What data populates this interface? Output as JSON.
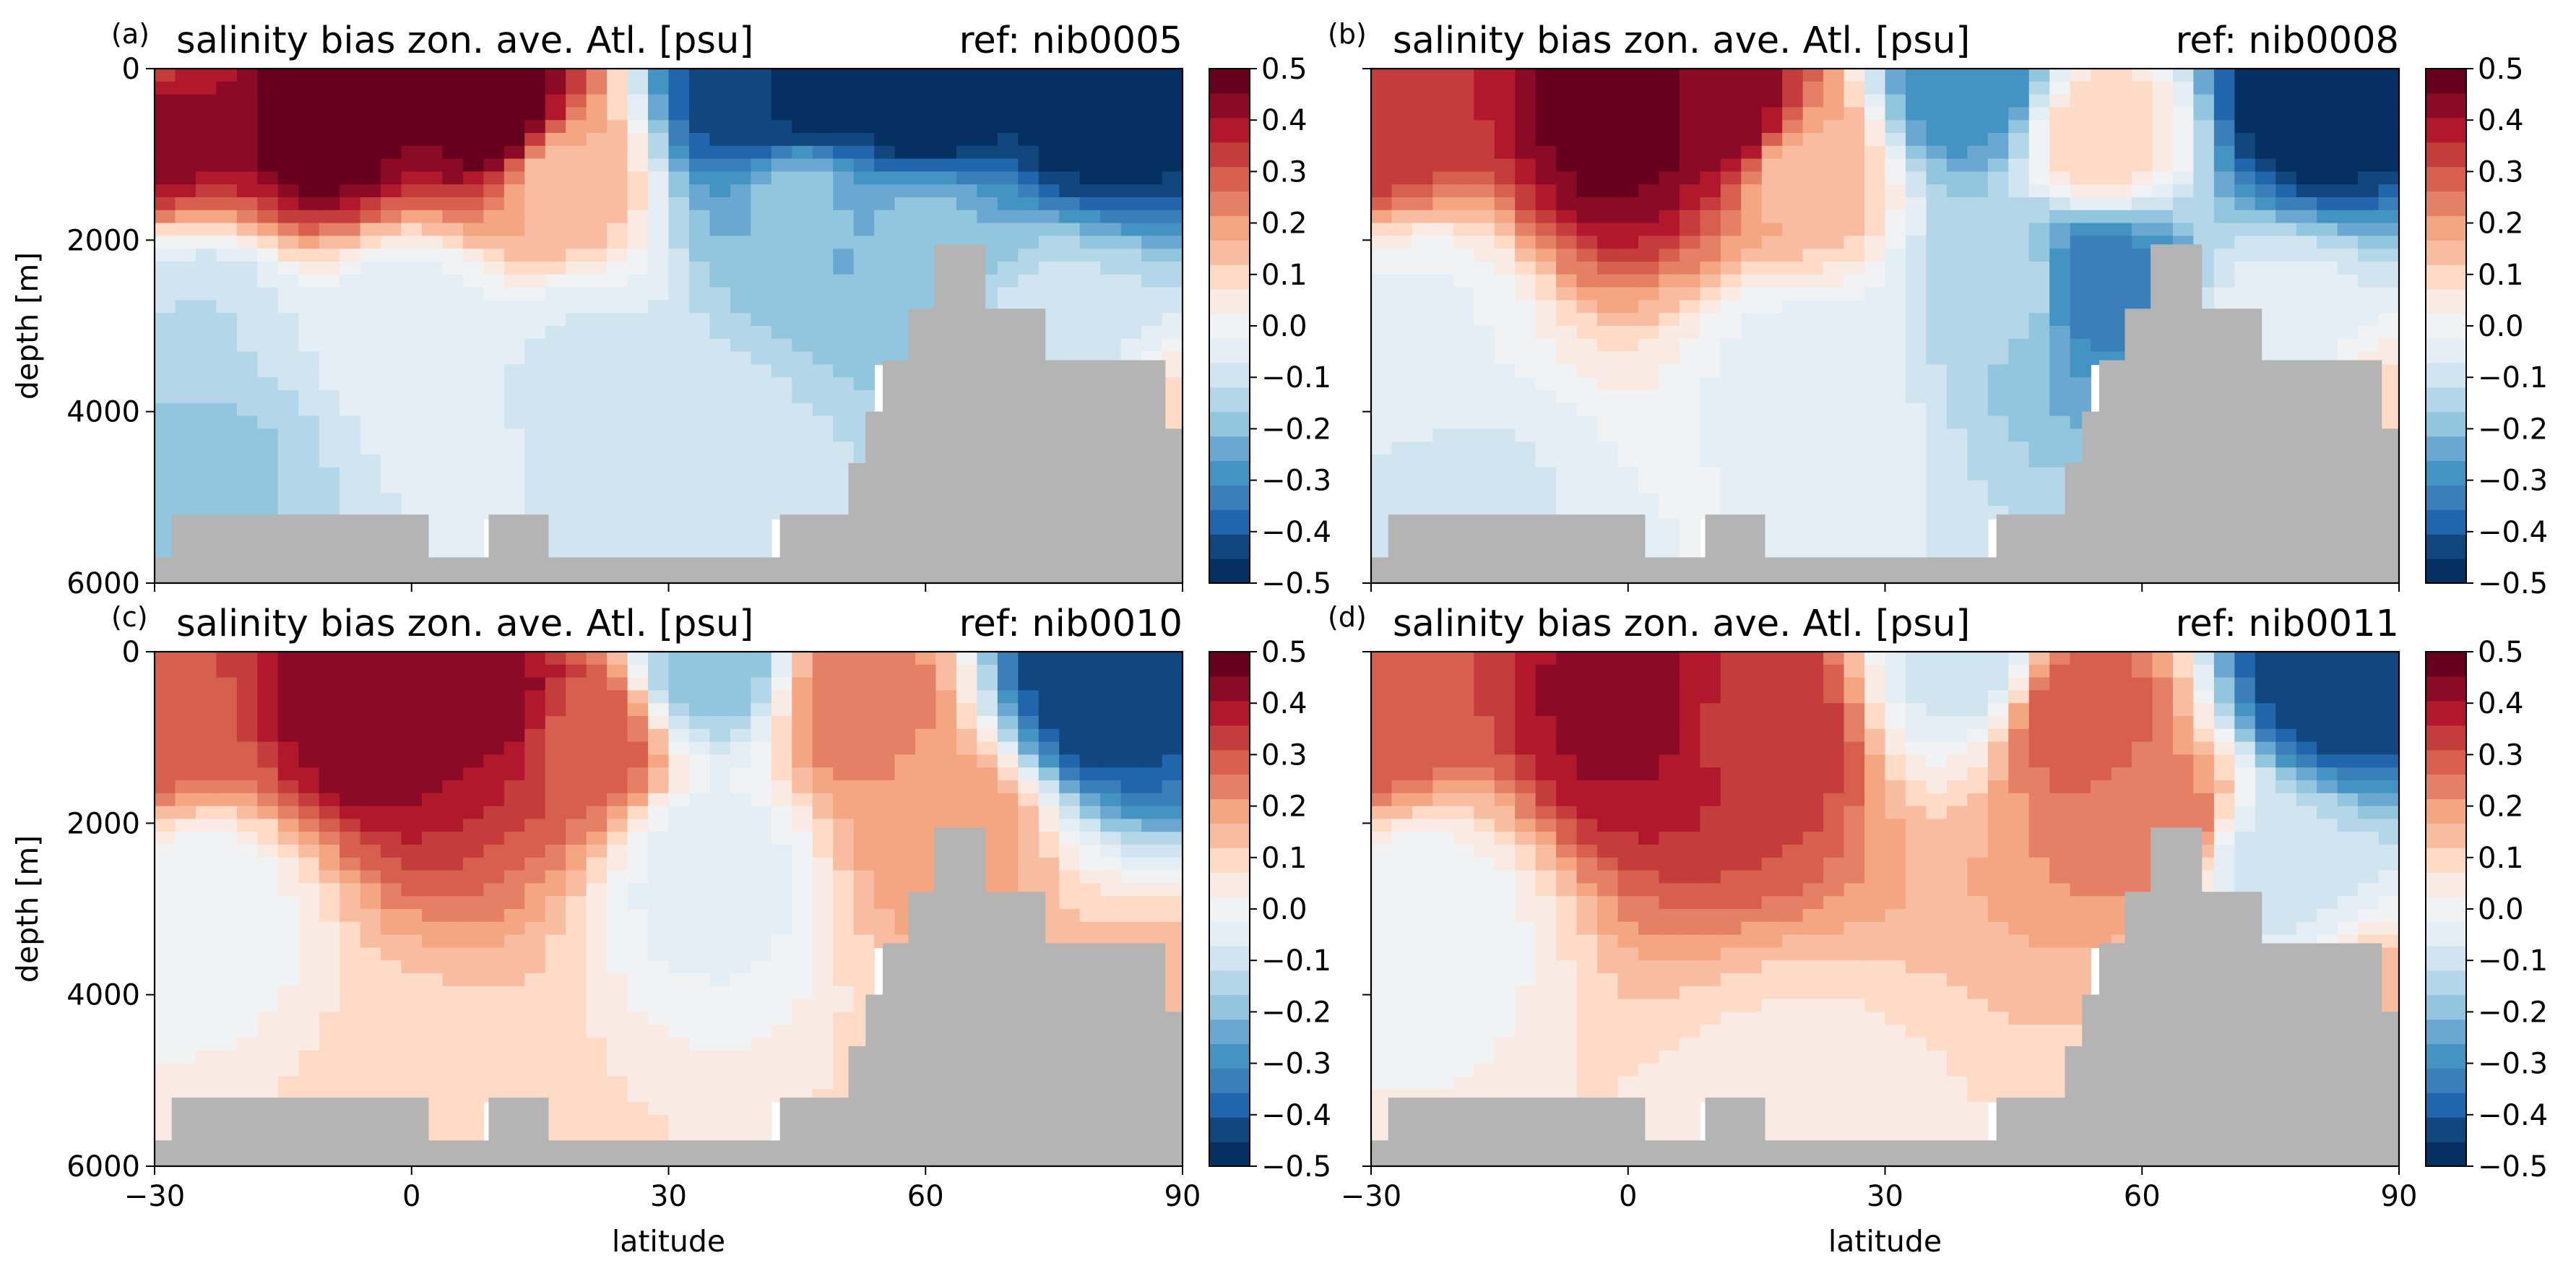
{
  "figure": {
    "panels": [
      {
        "tag": "(a)",
        "title": "salinity bias zon. ave. Atl. [psu]",
        "ref": "ref: nib0005"
      },
      {
        "tag": "(b)",
        "title": "salinity bias zon. ave. Atl. [psu]",
        "ref": "ref: nib0008"
      },
      {
        "tag": "(c)",
        "title": "salinity bias zon. ave. Atl. [psu]",
        "ref": "ref: nib0010"
      },
      {
        "tag": "(d)",
        "title": "salinity bias zon. ave. Atl. [psu]",
        "ref": "ref: nib0011"
      }
    ],
    "ylabel": "depth [m]",
    "xlabel": "latitude",
    "xticks": [
      "−30",
      "0",
      "30",
      "60",
      "90"
    ],
    "yticks": [
      "0",
      "2000",
      "4000",
      "6000"
    ],
    "colorbar_ticks": [
      "0.5",
      "0.4",
      "0.3",
      "0.2",
      "0.1",
      "0.0",
      "−0.1",
      "−0.2",
      "−0.3",
      "−0.4",
      "−0.5"
    ],
    "colormap": [
      "#053061",
      "#11467f",
      "#2166ac",
      "#3a7fba",
      "#4393c3",
      "#6ba8d1",
      "#92c5de",
      "#b3d6e9",
      "#d1e5f0",
      "#e4eef4",
      "#f0f2f3",
      "#f9ebe3",
      "#fddbc7",
      "#f8bda0",
      "#f4a582",
      "#e48066",
      "#d6604d",
      "#c53c3c",
      "#b2182b",
      "#8b0a25",
      "#67001f"
    ],
    "land_color": "#b4b4b4"
  },
  "chart_data": [
    {
      "type": "heatmap",
      "title": "salinity bias zon. ave. Atl. [psu]",
      "ref": "nib0005",
      "xlabel": "",
      "ylabel": "depth [m]",
      "xlim": [
        -30,
        90
      ],
      "ylim": [
        6000,
        0
      ],
      "clim": [
        -0.5,
        0.5
      ],
      "bathymetry": [
        [
          -30,
          5700
        ],
        [
          -28,
          5200
        ],
        [
          2,
          5700
        ],
        [
          9,
          5200
        ],
        [
          16,
          5700
        ],
        [
          43,
          5200
        ],
        [
          51,
          4600
        ],
        [
          53,
          4000
        ],
        [
          55,
          3400
        ],
        [
          58,
          2800
        ],
        [
          61,
          2050
        ],
        [
          67,
          2800
        ],
        [
          74,
          3400
        ],
        [
          88,
          4200
        ],
        [
          90,
          4200
        ]
      ],
      "bias_points": [
        {
          "lat": -30,
          "depth": 50,
          "value": 0.35
        },
        {
          "lat": -30,
          "depth": 500,
          "value": 0.45
        },
        {
          "lat": -10,
          "depth": 600,
          "value": 0.5
        },
        {
          "lat": 10,
          "depth": 600,
          "value": 0.5
        },
        {
          "lat": 17,
          "depth": 1300,
          "value": 0.15
        },
        {
          "lat": 40,
          "depth": 400,
          "value": -0.45
        },
        {
          "lat": 47,
          "depth": 300,
          "value": -0.5
        },
        {
          "lat": 60,
          "depth": 400,
          "value": -0.5
        },
        {
          "lat": 80,
          "depth": 400,
          "value": -0.5
        },
        {
          "lat": 45,
          "depth": 1500,
          "value": -0.2
        },
        {
          "lat": 60,
          "depth": 2000,
          "value": -0.2
        },
        {
          "lat": -25,
          "depth": 3000,
          "value": -0.12
        },
        {
          "lat": -25,
          "depth": 4500,
          "value": -0.18
        },
        {
          "lat": 0,
          "depth": 3000,
          "value": -0.06
        },
        {
          "lat": 20,
          "depth": 3500,
          "value": -0.08
        },
        {
          "lat": 35,
          "depth": 4500,
          "value": -0.1
        },
        {
          "lat": 75,
          "depth": 3000,
          "value": -0.1
        },
        {
          "lat": 86,
          "depth": 4500,
          "value": 0.12
        }
      ]
    },
    {
      "type": "heatmap",
      "title": "salinity bias zon. ave. Atl. [psu]",
      "ref": "nib0008",
      "xlabel": "",
      "ylabel": "",
      "xlim": [
        -30,
        90
      ],
      "ylim": [
        6000,
        0
      ],
      "clim": [
        -0.5,
        0.5
      ],
      "bathymetry": [
        [
          -30,
          5700
        ],
        [
          -28,
          5200
        ],
        [
          2,
          5700
        ],
        [
          9,
          5200
        ],
        [
          16,
          5700
        ],
        [
          43,
          5200
        ],
        [
          51,
          4600
        ],
        [
          53,
          4000
        ],
        [
          55,
          3400
        ],
        [
          58,
          2800
        ],
        [
          61,
          2050
        ],
        [
          67,
          2800
        ],
        [
          74,
          3400
        ],
        [
          88,
          4200
        ],
        [
          90,
          4200
        ]
      ],
      "bias_points": [
        {
          "lat": -30,
          "depth": 500,
          "value": 0.35
        },
        {
          "lat": 0,
          "depth": 600,
          "value": 0.48
        },
        {
          "lat": 12,
          "depth": 600,
          "value": 0.45
        },
        {
          "lat": 20,
          "depth": 1200,
          "value": 0.15
        },
        {
          "lat": 40,
          "depth": 250,
          "value": -0.3
        },
        {
          "lat": 55,
          "depth": 800,
          "value": 0.1
        },
        {
          "lat": 80,
          "depth": 400,
          "value": -0.5
        },
        {
          "lat": 55,
          "depth": 2500,
          "value": -0.35
        },
        {
          "lat": 45,
          "depth": 2500,
          "value": -0.15
        },
        {
          "lat": -25,
          "depth": 3000,
          "value": -0.03
        },
        {
          "lat": -20,
          "depth": 5000,
          "value": -0.08
        },
        {
          "lat": 20,
          "depth": 3500,
          "value": -0.04
        },
        {
          "lat": 75,
          "depth": 3000,
          "value": -0.05
        },
        {
          "lat": 86,
          "depth": 4500,
          "value": 0.12
        }
      ]
    },
    {
      "type": "heatmap",
      "title": "salinity bias zon. ave. Atl. [psu]",
      "ref": "nib0010",
      "xlabel": "latitude",
      "ylabel": "depth [m]",
      "xlim": [
        -30,
        90
      ],
      "ylim": [
        6000,
        0
      ],
      "clim": [
        -0.5,
        0.5
      ],
      "bathymetry": [
        [
          -30,
          5700
        ],
        [
          -28,
          5200
        ],
        [
          2,
          5700
        ],
        [
          9,
          5200
        ],
        [
          16,
          5700
        ],
        [
          43,
          5200
        ],
        [
          51,
          4600
        ],
        [
          53,
          4000
        ],
        [
          55,
          3400
        ],
        [
          58,
          2800
        ],
        [
          61,
          2050
        ],
        [
          67,
          2800
        ],
        [
          74,
          3400
        ],
        [
          88,
          4200
        ],
        [
          90,
          4200
        ]
      ],
      "bias_points": [
        {
          "lat": -30,
          "depth": 700,
          "value": 0.3
        },
        {
          "lat": -5,
          "depth": 600,
          "value": 0.45
        },
        {
          "lat": 10,
          "depth": 600,
          "value": 0.42
        },
        {
          "lat": 20,
          "depth": 1000,
          "value": 0.3
        },
        {
          "lat": 35,
          "depth": 150,
          "value": -0.2
        },
        {
          "lat": 52,
          "depth": 600,
          "value": 0.25
        },
        {
          "lat": 62,
          "depth": 2000,
          "value": 0.2
        },
        {
          "lat": 80,
          "depth": 400,
          "value": -0.45
        },
        {
          "lat": 35,
          "depth": 2500,
          "value": -0.05
        },
        {
          "lat": -25,
          "depth": 3000,
          "value": -0.01
        },
        {
          "lat": 0,
          "depth": 5600,
          "value": 0.08
        },
        {
          "lat": 86,
          "depth": 4500,
          "value": 0.15
        }
      ]
    },
    {
      "type": "heatmap",
      "title": "salinity bias zon. ave. Atl. [psu]",
      "ref": "nib0011",
      "xlabel": "latitude",
      "ylabel": "",
      "xlim": [
        -30,
        90
      ],
      "ylim": [
        6000,
        0
      ],
      "clim": [
        -0.5,
        0.5
      ],
      "bathymetry": [
        [
          -30,
          5700
        ],
        [
          -28,
          5200
        ],
        [
          2,
          5700
        ],
        [
          9,
          5200
        ],
        [
          16,
          5700
        ],
        [
          43,
          5200
        ],
        [
          51,
          4600
        ],
        [
          53,
          4000
        ],
        [
          55,
          3400
        ],
        [
          58,
          2800
        ],
        [
          61,
          2050
        ],
        [
          67,
          2800
        ],
        [
          74,
          3400
        ],
        [
          88,
          4200
        ],
        [
          90,
          4200
        ]
      ],
      "bias_points": [
        {
          "lat": -30,
          "depth": 700,
          "value": 0.3
        },
        {
          "lat": 0,
          "depth": 600,
          "value": 0.42
        },
        {
          "lat": 15,
          "depth": 800,
          "value": 0.35
        },
        {
          "lat": 40,
          "depth": 150,
          "value": -0.1
        },
        {
          "lat": 52,
          "depth": 700,
          "value": 0.3
        },
        {
          "lat": 62,
          "depth": 2000,
          "value": 0.25
        },
        {
          "lat": 82,
          "depth": 400,
          "value": -0.45
        },
        {
          "lat": 75,
          "depth": 2500,
          "value": -0.1
        },
        {
          "lat": -25,
          "depth": 3000,
          "value": -0.01
        },
        {
          "lat": 20,
          "depth": 5600,
          "value": 0.05
        },
        {
          "lat": 86,
          "depth": 4500,
          "value": 0.15
        }
      ]
    }
  ]
}
